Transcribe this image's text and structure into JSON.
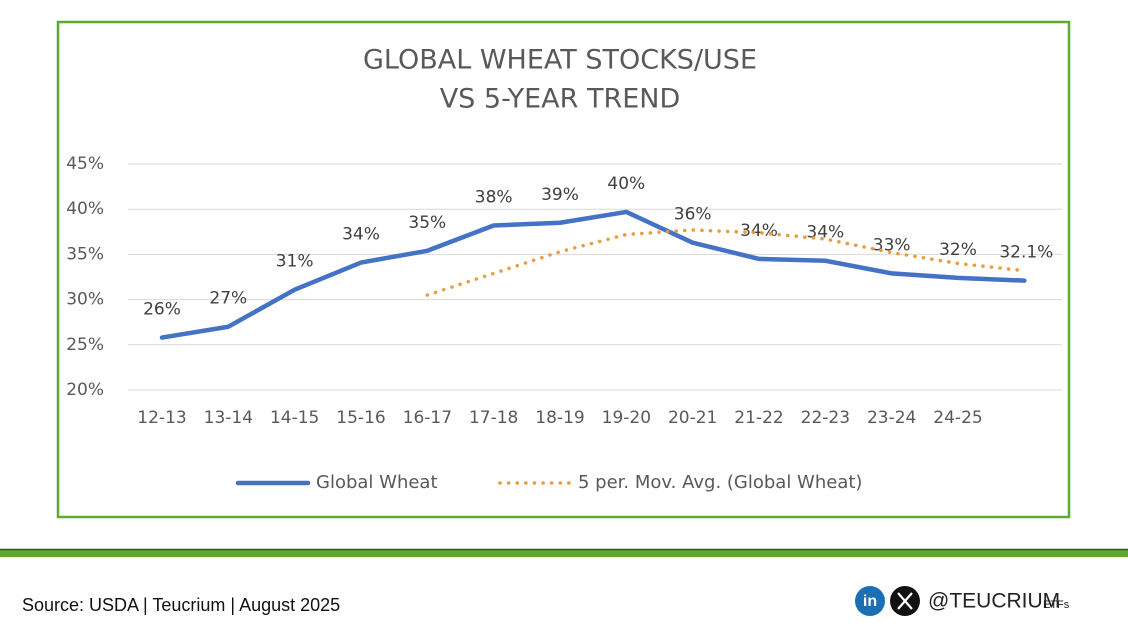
{
  "chart_data": {
    "type": "line",
    "title": [
      "GLOBAL WHEAT STOCKS/USE",
      "VS 5-YEAR TREND"
    ],
    "categories": [
      "12-13",
      "13-14",
      "14-15",
      "15-16",
      "16-17",
      "17-18",
      "18-19",
      "19-20",
      "20-21",
      "21-22",
      "22-23",
      "23-24",
      "24-25",
      null
    ],
    "series": [
      {
        "name": "Global Wheat",
        "color": "#4472c4",
        "style": "solid",
        "values": [
          25.8,
          27.0,
          31.1,
          34.1,
          35.4,
          38.2,
          38.5,
          39.7,
          36.3,
          34.5,
          34.3,
          32.9,
          32.4,
          32.1
        ],
        "value_labels": [
          "26%",
          "27%",
          "31%",
          "34%",
          "35%",
          "38%",
          "39%",
          "40%",
          "36%",
          "34%",
          "34%",
          "33%",
          "32%",
          "32.1%"
        ]
      },
      {
        "name": "5 per. Mov. Avg. (Global Wheat)",
        "color": "#ed9b3a",
        "style": "dotted",
        "values": [
          null,
          null,
          null,
          null,
          30.5,
          32.9,
          35.3,
          37.2,
          37.7,
          37.4,
          36.7,
          35.2,
          34.0,
          33.2
        ]
      }
    ],
    "ylim": [
      20,
      45
    ],
    "yticks": [
      {
        "value": 20,
        "label": "20%"
      },
      {
        "value": 25,
        "label": "25%"
      },
      {
        "value": 30,
        "label": "30%"
      },
      {
        "value": 35,
        "label": "35%"
      },
      {
        "value": 40,
        "label": "40%"
      },
      {
        "value": 45,
        "label": "45%"
      }
    ],
    "grid": true,
    "legend": "bottom"
  },
  "footer": {
    "source": "Source: USDA | Teucrium | August 2025",
    "linkedin": "in",
    "handle": "@TEUCRIUM",
    "suffix": "ETFs"
  }
}
